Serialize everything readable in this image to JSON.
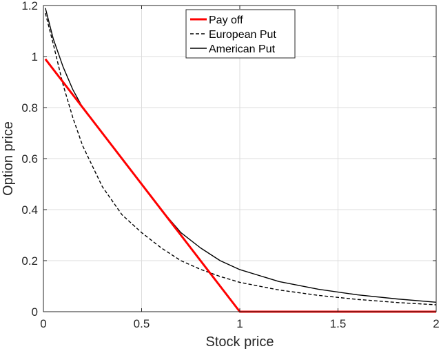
{
  "chart_data": {
    "type": "line",
    "title": "",
    "xlabel": "Stock price",
    "ylabel": "Option price",
    "xlim": [
      0,
      2
    ],
    "ylim": [
      0,
      1.2
    ],
    "xticks": [
      0,
      0.5,
      1,
      1.5,
      2
    ],
    "xtick_labels": [
      "0",
      "0.5",
      "1",
      "1.5",
      "2"
    ],
    "yticks": [
      0,
      0.2,
      0.4,
      0.6,
      0.8,
      1,
      1.2
    ],
    "ytick_labels": [
      "0",
      "0.2",
      "0.4",
      "0.6",
      "0.8",
      "1",
      "1.2"
    ],
    "grid": true,
    "legend_position": "top-center",
    "series": [
      {
        "name": "Pay off",
        "color": "#ff0000",
        "style": "solid",
        "x": [
          0.01,
          1.0,
          2.0
        ],
        "y": [
          0.99,
          0.0,
          0.0
        ]
      },
      {
        "name": "European Put",
        "color": "#000000",
        "style": "dashed",
        "x": [
          0.01,
          0.05,
          0.1,
          0.15,
          0.2,
          0.3,
          0.4,
          0.5,
          0.6,
          0.7,
          0.8,
          0.9,
          1.0,
          1.2,
          1.4,
          1.6,
          1.8,
          2.0
        ],
        "y": [
          1.17,
          1.05,
          0.89,
          0.76,
          0.65,
          0.49,
          0.38,
          0.31,
          0.25,
          0.2,
          0.166,
          0.138,
          0.115,
          0.085,
          0.064,
          0.048,
          0.036,
          0.027
        ]
      },
      {
        "name": "American Put",
        "color": "#000000",
        "style": "solid",
        "x": [
          0.01,
          0.05,
          0.1,
          0.15,
          0.2,
          0.3,
          0.4,
          0.5,
          0.6,
          0.7,
          0.8,
          0.9,
          1.0,
          1.2,
          1.4,
          1.6,
          1.8,
          2.0
        ],
        "y": [
          1.19,
          1.07,
          0.96,
          0.87,
          0.8,
          0.7,
          0.6,
          0.5,
          0.4,
          0.31,
          0.25,
          0.2,
          0.165,
          0.118,
          0.088,
          0.066,
          0.05,
          0.037
        ]
      }
    ]
  }
}
